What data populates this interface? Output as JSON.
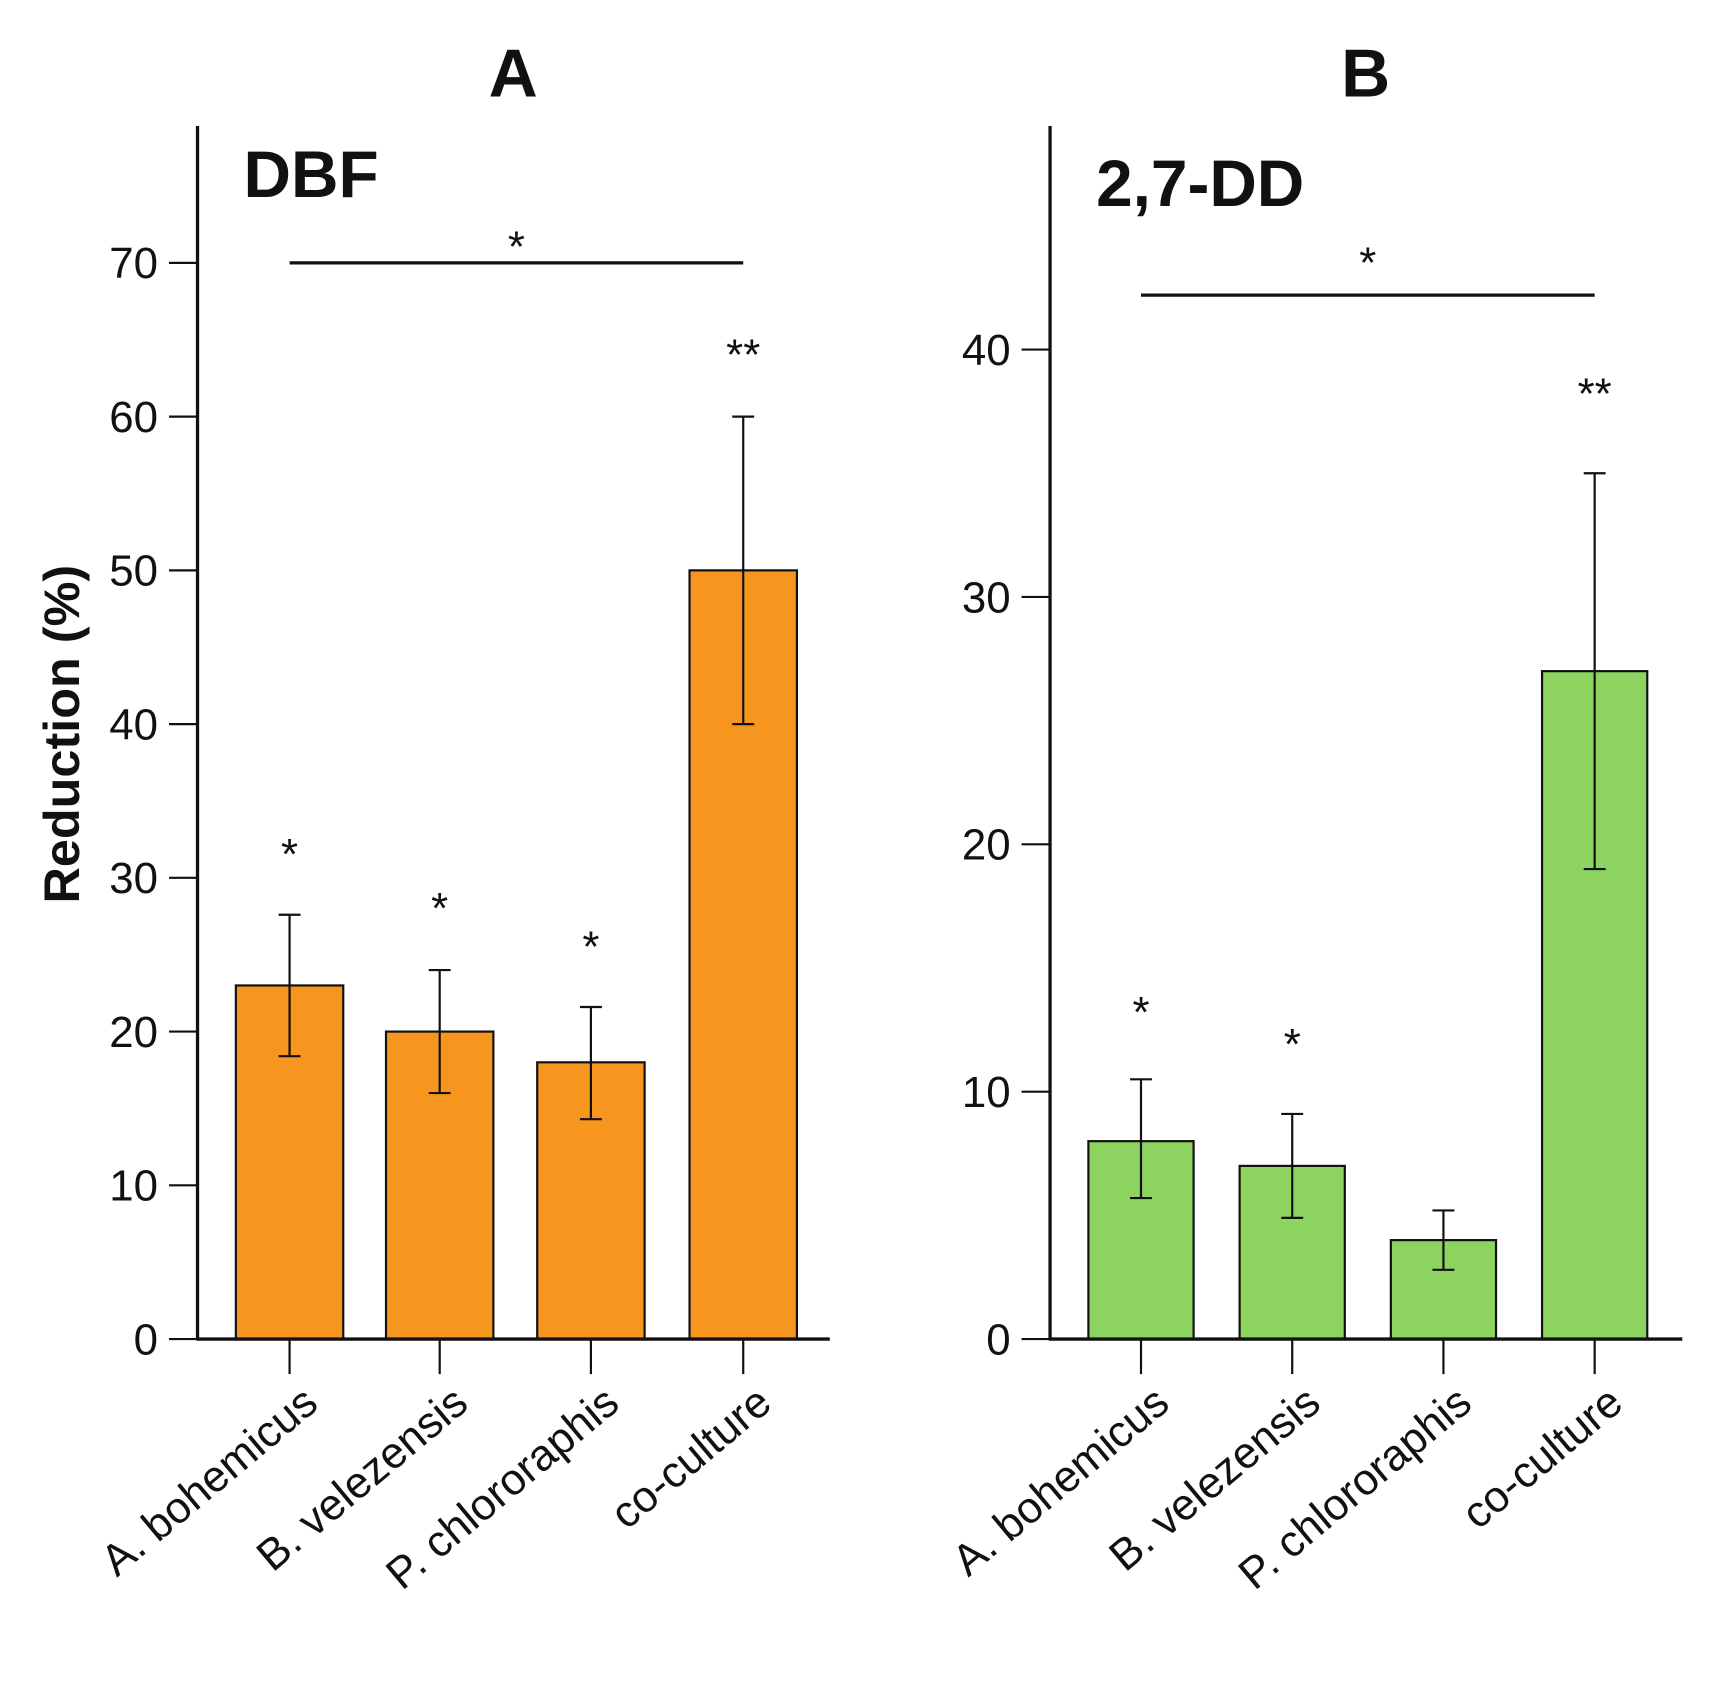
{
  "chart_data": [
    {
      "type": "bar",
      "panel_label": "A",
      "title": "DBF",
      "ylabel": "Reduction (%)",
      "xlabel": "",
      "ylim": [
        0,
        79
      ],
      "yticks": [
        0,
        10,
        20,
        30,
        40,
        50,
        60,
        70
      ],
      "categories": [
        "A. bohemicus",
        "B. velezensis",
        "P. chlororaphis",
        "co-culture"
      ],
      "values": [
        23,
        20,
        18,
        50
      ],
      "error_low": [
        18.4,
        16,
        14.3,
        40
      ],
      "error_high": [
        27.6,
        24,
        21.6,
        60
      ],
      "significance": [
        "*",
        "*",
        "*",
        "**"
      ],
      "significance_y": [
        32,
        28.5,
        26,
        64.5
      ],
      "bracket": {
        "from": 0,
        "to": 3,
        "y": 70,
        "label": "*",
        "label_y": 71.5
      },
      "color": "#F7961E"
    },
    {
      "type": "bar",
      "panel_label": "B",
      "title": "2,7-DD",
      "ylabel": "",
      "xlabel": "",
      "ylim": [
        0,
        48.8
      ],
      "yticks": [
        0,
        10,
        20,
        30,
        40
      ],
      "categories": [
        "A. bohemicus",
        "B. velezensis",
        "P. chlororaphis",
        "co-culture"
      ],
      "values": [
        8,
        7,
        4,
        27
      ],
      "error_low": [
        5.7,
        4.9,
        2.8,
        19
      ],
      "error_high": [
        10.5,
        9.1,
        5.2,
        35
      ],
      "significance": [
        "*",
        "*",
        "",
        "**"
      ],
      "significance_y": [
        13.5,
        12.2,
        0,
        38.5
      ],
      "bracket": {
        "from": 0,
        "to": 3,
        "y": 42.2,
        "label": "*",
        "label_y": 43.8
      },
      "color": "#8CD35F"
    }
  ]
}
